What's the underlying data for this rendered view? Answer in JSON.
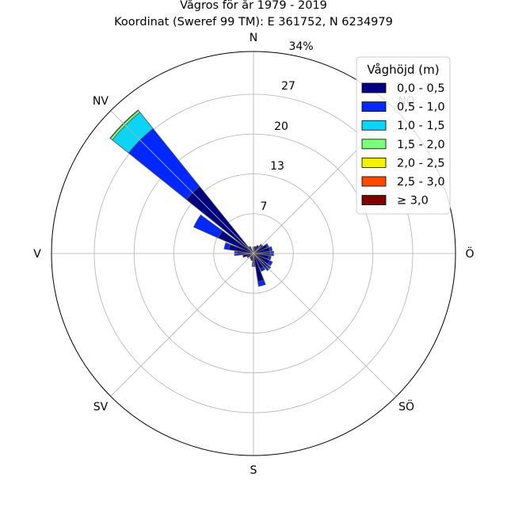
{
  "title_line1": "Vågros för år 1979 - 2019",
  "title_line2": "Koordinat (Sweref 99 TM): E 361752, N 6234979",
  "chart_data": {
    "type": "polar-stacked-bar",
    "directions": [
      "N",
      "NO",
      "Ö",
      "SÖ",
      "S",
      "SV",
      "V",
      "NV"
    ],
    "radial_ticks": [
      "7",
      "13",
      "20",
      "27",
      "34%"
    ],
    "radial_max": 34,
    "legend_title": "Våghöjd (m)",
    "legend_entries": [
      {
        "label": "0,0 - 0,5",
        "color": "#000080"
      },
      {
        "label": "0,5 - 1,0",
        "color": "#0028ff"
      },
      {
        "label": "1,0 - 1,5",
        "color": "#0cd4f4"
      },
      {
        "label": "1,5 - 2,0",
        "color": "#7bff7b"
      },
      {
        "label": "2,0 - 2,5",
        "color": "#f4f400"
      },
      {
        "label": "2,5 - 3,0",
        "color": "#ff4800"
      },
      {
        "label": "≥ 3,0",
        "color": "#800000"
      }
    ],
    "sector_angles_deg": [
      0,
      15,
      30,
      45,
      60,
      75,
      90,
      105,
      120,
      135,
      150,
      165,
      180,
      195,
      210,
      225,
      240,
      255,
      270,
      285,
      300,
      315,
      330
    ],
    "stacks": [
      [
        0.8,
        0.3
      ],
      [
        1.2
      ],
      [
        1.5
      ],
      [
        2.0
      ],
      [
        2.5,
        0.3
      ],
      [
        2.8,
        0.4
      ],
      [
        2.8,
        0.6
      ],
      [
        2.6,
        0.4
      ],
      [
        3.0,
        0.5
      ],
      [
        3.2,
        0.5
      ],
      [
        2.8,
        0.5
      ],
      [
        4.8,
        0.8
      ],
      [
        1.8,
        0.4
      ],
      [
        1.2
      ],
      [
        1.0
      ],
      [
        0.8
      ],
      [
        1.2
      ],
      [
        1.8
      ],
      [
        2.8,
        0.4
      ],
      [
        4.2,
        0.8
      ],
      [
        6.5,
        4.5
      ],
      [
        14.5,
        12.5,
        3.5,
        0.4,
        0.1
      ],
      [
        0.9,
        0.4
      ]
    ]
  }
}
